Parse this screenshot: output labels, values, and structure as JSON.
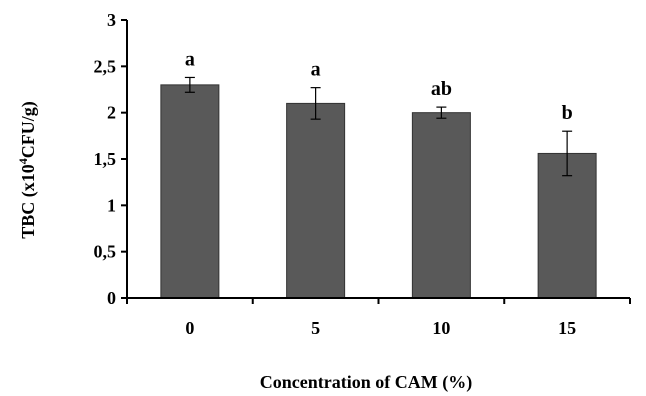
{
  "chart_data": {
    "type": "bar",
    "categories": [
      "0",
      "5",
      "10",
      "15"
    ],
    "values": [
      2.3,
      2.1,
      2.0,
      1.56
    ],
    "errors": [
      0.08,
      0.17,
      0.06,
      0.24
    ],
    "significance": [
      "a",
      "a",
      "ab",
      "b"
    ],
    "ylim": [
      0,
      3
    ],
    "yticks": [
      "0",
      "0,5",
      "1",
      "1,5",
      "2",
      "2,5",
      "3"
    ],
    "ytick_values": [
      0,
      0.5,
      1,
      1.5,
      2,
      2.5,
      3
    ],
    "xlabel": "Concentration of CAM (%)",
    "ylabel_main": "TBC (x10",
    "ylabel_sup": "4",
    "ylabel_tail": "CFU/g)",
    "bar_color": "#595959",
    "grid": false
  }
}
